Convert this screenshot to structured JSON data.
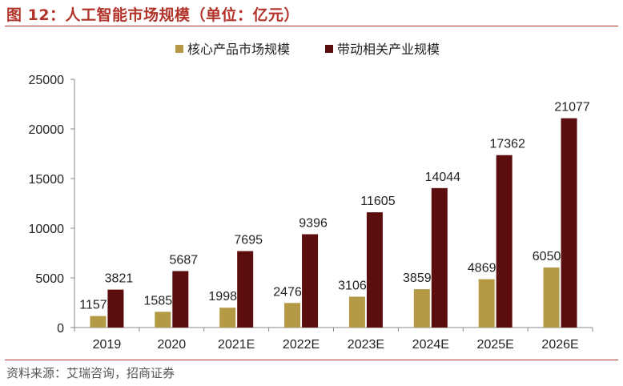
{
  "figure": {
    "title": "图 12：人工智能市场规模（单位：亿元）",
    "source": "资料来源：艾瑞咨询，招商证券"
  },
  "colors": {
    "accent": "#b2332a",
    "core": "#b59a45",
    "related": "#5c0e0e",
    "axis": "#888888"
  },
  "chart_data": {
    "type": "bar",
    "title": "人工智能市场规模（单位：亿元）",
    "xlabel": "",
    "ylabel": "",
    "ylim": [
      0,
      25000
    ],
    "yticks": [
      0,
      5000,
      10000,
      15000,
      20000,
      25000
    ],
    "categories": [
      "2019",
      "2020",
      "2021E",
      "2022E",
      "2023E",
      "2024E",
      "2025E",
      "2026E"
    ],
    "series": [
      {
        "name": "核心产品市场规模",
        "values": [
          1157,
          1585,
          1998,
          2476,
          3106,
          3859,
          4869,
          6050
        ]
      },
      {
        "name": "带动相关产业规模",
        "values": [
          3821,
          5687,
          7695,
          9396,
          11605,
          14044,
          17362,
          21077
        ]
      }
    ],
    "legend_position": "top-center",
    "grid": false
  }
}
